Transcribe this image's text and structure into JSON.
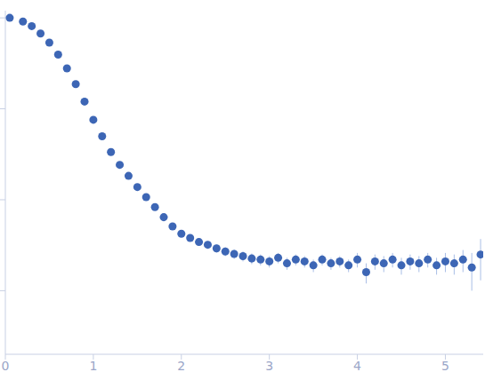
{
  "chart_data": {
    "type": "scatter",
    "log": "y",
    "tick_labels": "x",
    "grid": false,
    "color": "#3d66b5",
    "marker": "circle",
    "xlim": [
      0,
      5.43
    ],
    "xticks": [
      0,
      1,
      2,
      3,
      4,
      5
    ],
    "ylim": [
      0.0002,
      1.2
    ],
    "yticks": [
      0.001,
      0.01,
      0.1,
      1
    ],
    "x": [
      0.05,
      0.2,
      0.3,
      0.4,
      0.5,
      0.6,
      0.7,
      0.8,
      0.9,
      1.0,
      1.1,
      1.2,
      1.3,
      1.4,
      1.5,
      1.6,
      1.7,
      1.8,
      1.9,
      2.0,
      2.1,
      2.2,
      2.3,
      2.4,
      2.5,
      2.6,
      2.7,
      2.8,
      2.9,
      3.0,
      3.1,
      3.2,
      3.3,
      3.4,
      3.5,
      3.6,
      3.7,
      3.8,
      3.9,
      4.0,
      4.1,
      4.2,
      4.3,
      4.4,
      4.5,
      4.6,
      4.7,
      4.8,
      4.9,
      5.0,
      5.1,
      5.2,
      5.3,
      5.4
    ],
    "values": [
      1.0,
      0.911,
      0.811,
      0.673,
      0.534,
      0.394,
      0.278,
      0.187,
      0.12,
      0.0757,
      0.0498,
      0.0335,
      0.0242,
      0.0183,
      0.0138,
      0.0107,
      0.0083,
      0.00643,
      0.00509,
      0.00423,
      0.0038,
      0.00343,
      0.0032,
      0.00292,
      0.0027,
      0.00254,
      0.0024,
      0.00226,
      0.0022,
      0.0021,
      0.0023,
      0.002,
      0.0022,
      0.0021,
      0.0019,
      0.0022,
      0.002,
      0.0021,
      0.0019,
      0.0022,
      0.0016,
      0.0021,
      0.002,
      0.0022,
      0.0019,
      0.0021,
      0.002,
      0.0022,
      0.0019,
      0.0021,
      0.002,
      0.0022,
      0.0018,
      0.0025
    ],
    "errors": [
      0.005,
      0.005,
      0.004,
      0.004,
      0.003,
      0.003,
      0.002,
      0.002,
      0.0015,
      0.001,
      0.0008,
      0.0006,
      0.0005,
      0.0004,
      0.0004,
      0.0003,
      0.0003,
      0.0003,
      0.0003,
      0.0003,
      0.0003,
      0.0003,
      0.0003,
      0.0003,
      0.0003,
      0.0003,
      0.0003,
      0.0003,
      0.0003,
      0.0003,
      0.0003,
      0.0003,
      0.0003,
      0.0003,
      0.0003,
      0.0003,
      0.0003,
      0.0003,
      0.0003,
      0.0004,
      0.0004,
      0.0004,
      0.0004,
      0.0004,
      0.0004,
      0.0004,
      0.0004,
      0.0004,
      0.0004,
      0.0005,
      0.0005,
      0.0006,
      0.0008,
      0.0012
    ]
  }
}
